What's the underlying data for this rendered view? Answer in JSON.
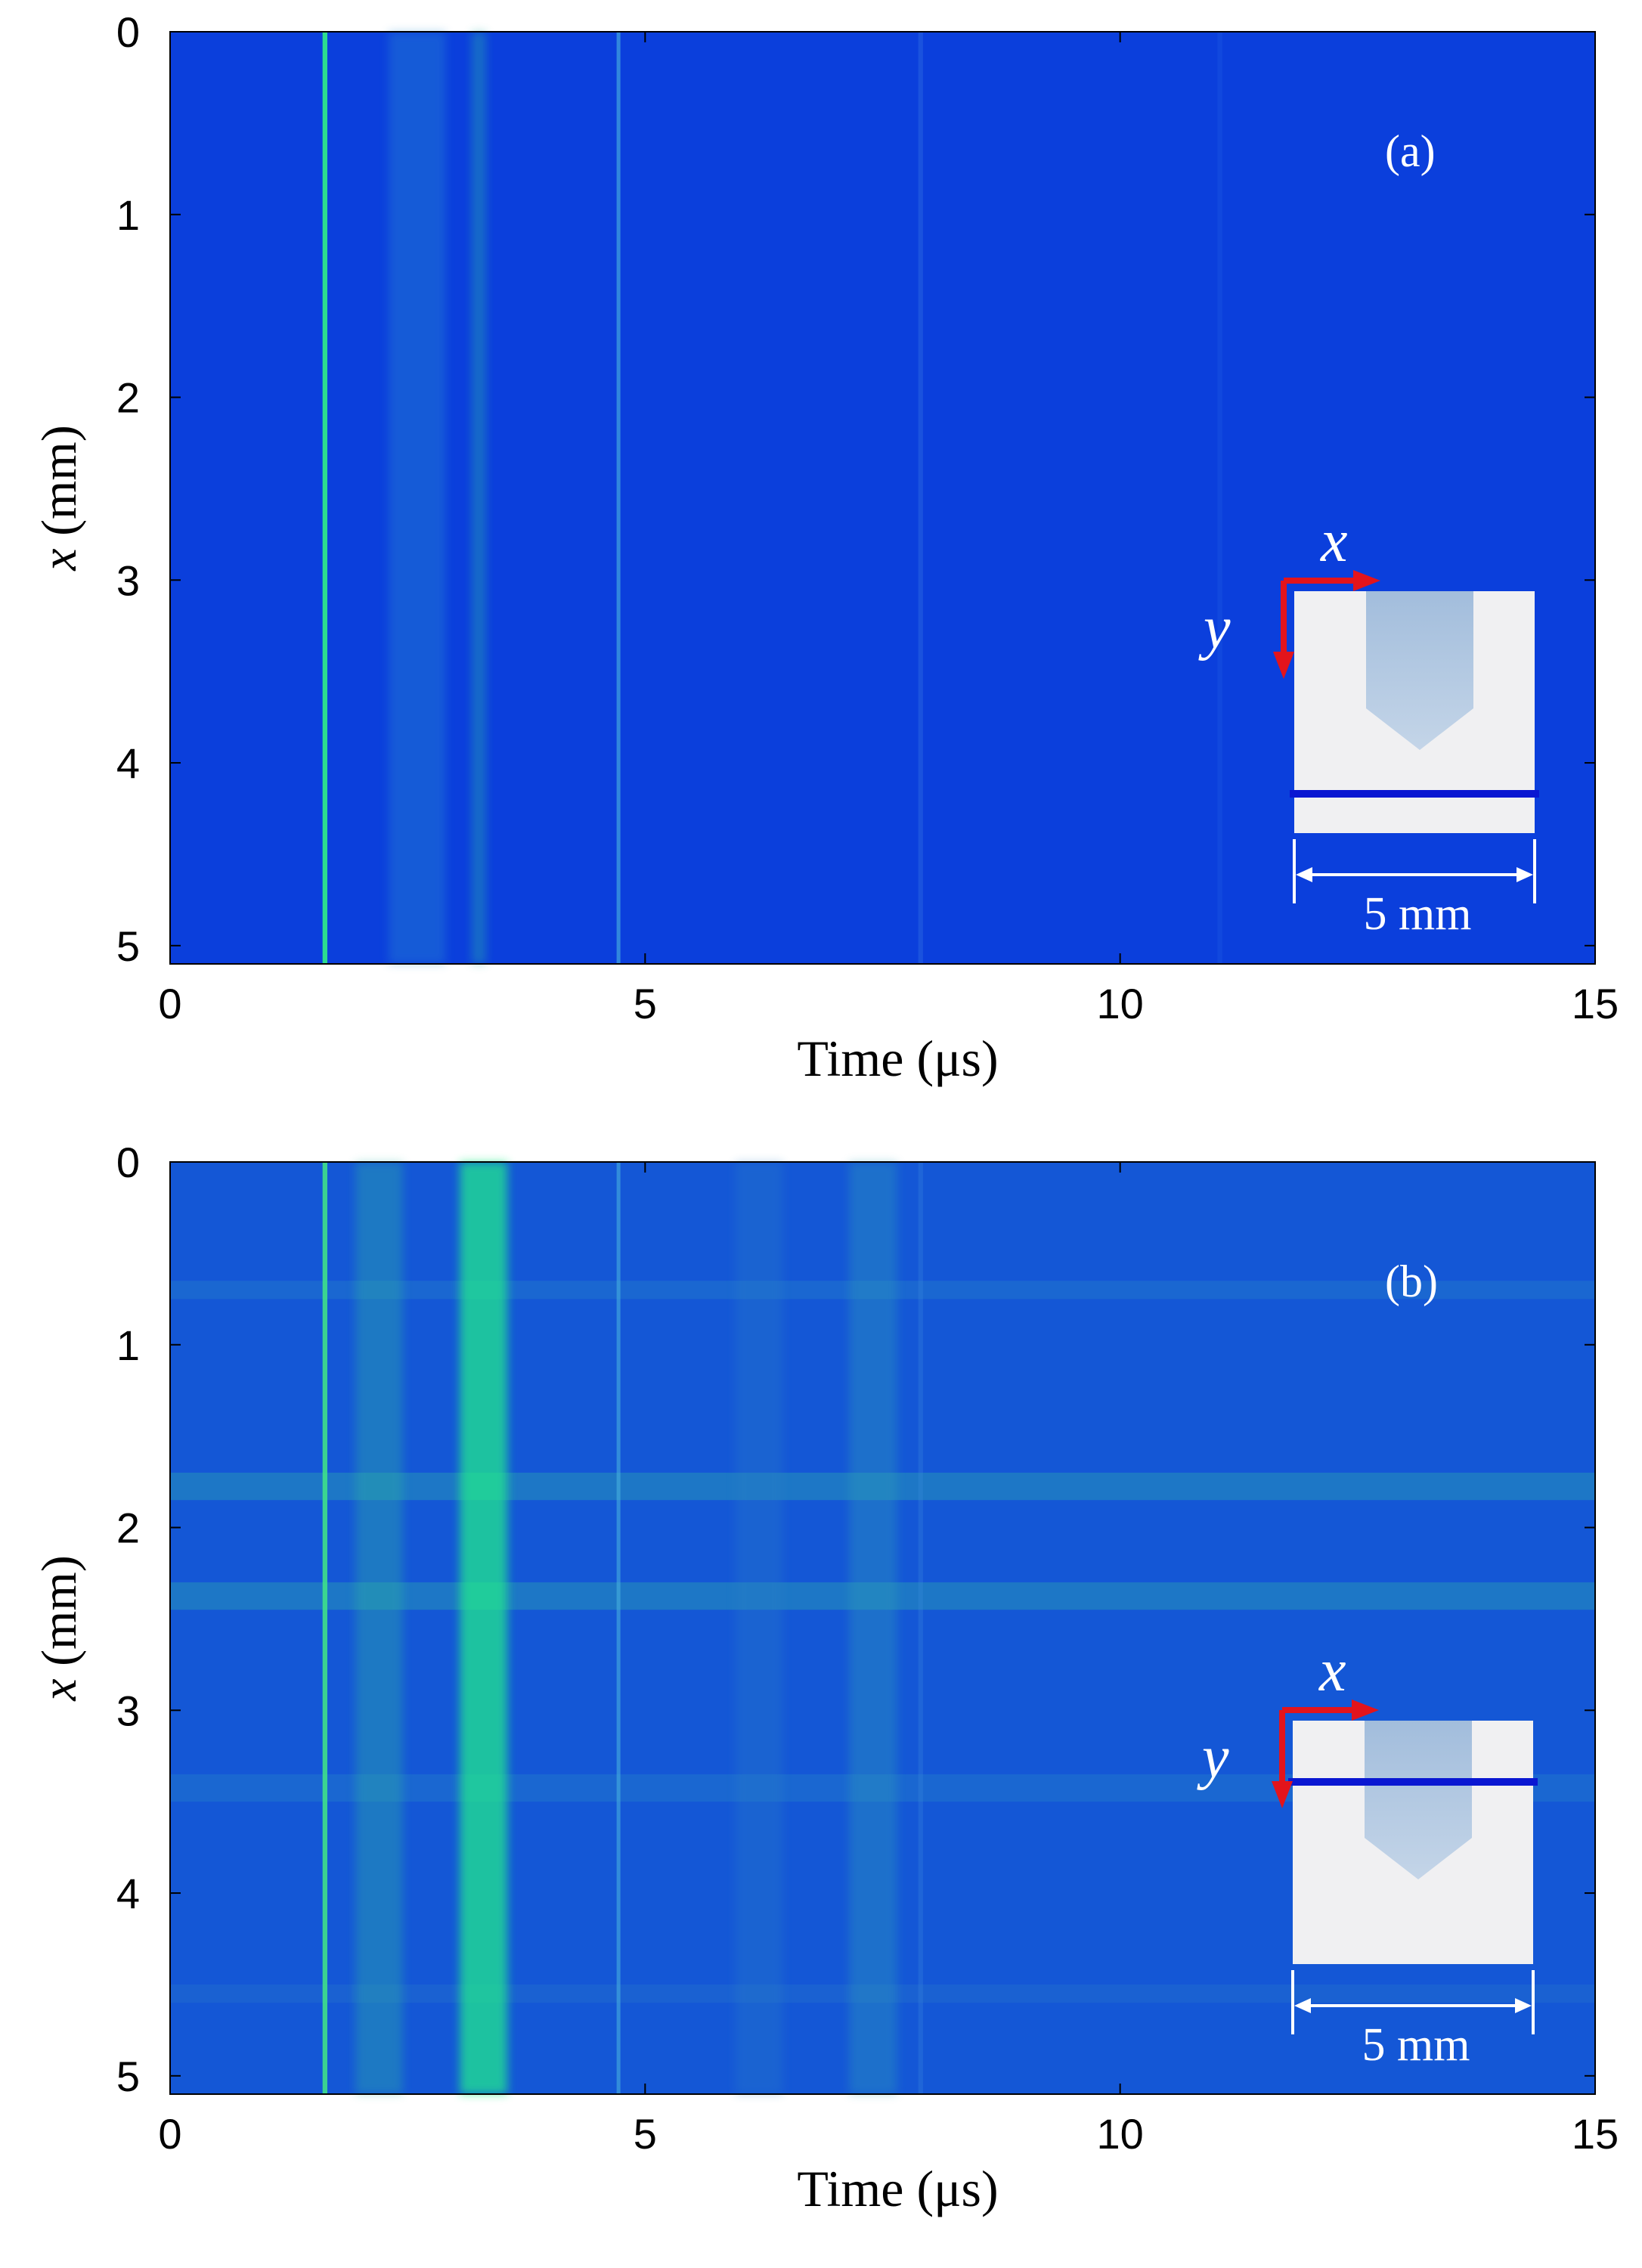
{
  "colors": {
    "background": "#ffffff",
    "axis": "#000000",
    "inset_fill": "#f0f0f2",
    "inset_shape": "#a8c2df",
    "scan_line": "#0a17d2",
    "axis_arrow": "#e3141c",
    "white": "#ffffff"
  },
  "chart_data": [
    {
      "type": "heatmap",
      "panel_label": "(a)",
      "xlabel": "Time (μs)",
      "ylabel_var": "x",
      "ylabel_unit": " (mm)",
      "xlim": [
        0,
        15
      ],
      "ylim": [
        0,
        5.1
      ],
      "y_reversed": true,
      "xticks": [
        0,
        5,
        10,
        15
      ],
      "yticks": [
        0,
        1,
        2,
        3,
        4,
        5
      ],
      "background_color": "#0b3fdc",
      "vertical_features": [
        {
          "time": 1.63,
          "color": "#2ee58a",
          "intensity": 0.95,
          "width": 0.05
        },
        {
          "time": 2.6,
          "color": "#2a8fd0",
          "intensity": 0.35,
          "width": 0.6
        },
        {
          "time": 3.25,
          "color": "#2ab0a8",
          "intensity": 0.4,
          "width": 0.15
        },
        {
          "time": 4.72,
          "color": "#4bb7e0",
          "intensity": 0.6,
          "width": 0.04
        },
        {
          "time": 7.9,
          "color": "#3f7fe6",
          "intensity": 0.3,
          "width": 0.05
        },
        {
          "time": 11.05,
          "color": "#2f6de4",
          "intensity": 0.2,
          "width": 0.05
        }
      ],
      "horizontal_bands": [],
      "inset": {
        "x_axis_label": "x",
        "y_axis_label": "y",
        "scale_label": "5 mm",
        "scan_line_position": "below-defect"
      }
    },
    {
      "type": "heatmap",
      "panel_label": "(b)",
      "xlabel": "Time (μs)",
      "ylabel_var": "x",
      "ylabel_unit": " (mm)",
      "xlim": [
        0,
        15
      ],
      "ylim": [
        0,
        5.1
      ],
      "y_reversed": true,
      "xticks": [
        0,
        5,
        10,
        15
      ],
      "yticks": [
        0,
        1,
        2,
        3,
        4,
        5
      ],
      "background_color": "#1457d6",
      "vertical_features": [
        {
          "time": 1.63,
          "color": "#3fe08a",
          "intensity": 0.9,
          "width": 0.05
        },
        {
          "time": 2.2,
          "color": "#2fb8a0",
          "intensity": 0.35,
          "width": 0.5
        },
        {
          "time": 3.3,
          "color": "#22f08a",
          "intensity": 0.7,
          "width": 0.5
        },
        {
          "time": 4.72,
          "color": "#4bb7e0",
          "intensity": 0.55,
          "width": 0.04
        },
        {
          "time": 6.2,
          "color": "#2a80c8",
          "intensity": 0.3,
          "width": 0.5
        },
        {
          "time": 7.4,
          "color": "#2fa0b8",
          "intensity": 0.35,
          "width": 0.5
        },
        {
          "time": 7.9,
          "color": "#3f8fe0",
          "intensity": 0.25,
          "width": 0.05
        }
      ],
      "horizontal_bands": [
        {
          "x_from": 0.65,
          "x_to": 0.75,
          "color": "#2a8fc8",
          "intensity": 0.3
        },
        {
          "x_from": 1.7,
          "x_to": 1.85,
          "color": "#2aa8b0",
          "intensity": 0.4
        },
        {
          "x_from": 2.3,
          "x_to": 2.45,
          "color": "#2aa8b0",
          "intensity": 0.4
        },
        {
          "x_from": 3.35,
          "x_to": 3.5,
          "color": "#2a90c8",
          "intensity": 0.3
        },
        {
          "x_from": 4.5,
          "x_to": 4.6,
          "color": "#2a80c8",
          "intensity": 0.25
        }
      ],
      "inset": {
        "x_axis_label": "x",
        "y_axis_label": "y",
        "scale_label": "5 mm",
        "scan_line_position": "through-defect"
      }
    }
  ]
}
